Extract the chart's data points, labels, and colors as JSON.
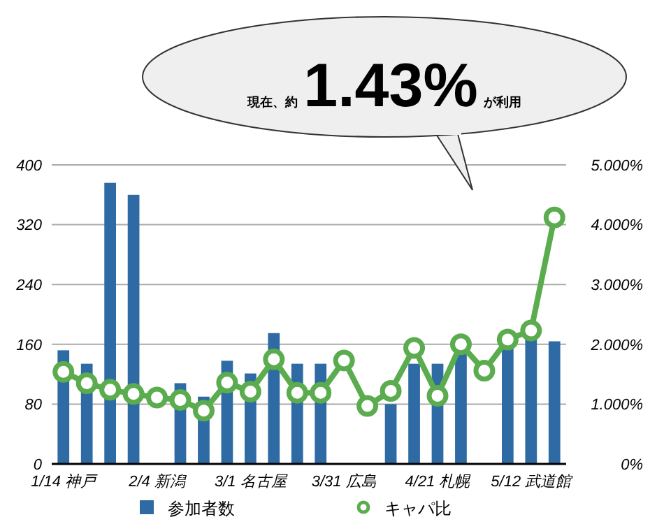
{
  "chart_data": {
    "type": "bar",
    "categories": [
      "1/14 神戸",
      null,
      null,
      null,
      "2/4 新潟",
      null,
      null,
      null,
      "3/1 名古屋",
      null,
      null,
      null,
      "3/31 広島",
      null,
      null,
      null,
      "4/21 札幌",
      null,
      null,
      null,
      "5/12 武道館",
      null
    ],
    "series": [
      {
        "name": "参加者数",
        "color": "#2e6aa3",
        "values": [
          152,
          134,
          376,
          360,
          null,
          108,
          90,
          138,
          121,
          175,
          134,
          134,
          null,
          null,
          80,
          134,
          134,
          150,
          null,
          159,
          168,
          164
        ]
      },
      {
        "name": "キャパ比",
        "type": "line",
        "axis": "y2",
        "color": "#5aac4e",
        "marker": "circle",
        "values": [
          1.54,
          1.35,
          1.24,
          1.17,
          1.11,
          1.07,
          0.89,
          1.36,
          1.21,
          1.75,
          1.19,
          1.19,
          1.73,
          0.97,
          1.22,
          1.94,
          1.14,
          2.0,
          1.56,
          2.08,
          2.23,
          4.12
        ]
      }
    ],
    "ylim": [
      0,
      400
    ],
    "yticks": [
      0,
      80,
      160,
      240,
      320,
      400
    ],
    "y2lim": [
      0,
      5
    ],
    "y2ticks": [
      {
        "value": 0,
        "label": "0%"
      },
      {
        "value": 1,
        "label": "1.000%"
      },
      {
        "value": 2,
        "label": "2.000%"
      },
      {
        "value": 3,
        "label": "3.000%"
      },
      {
        "value": 4,
        "label": "4.000%"
      },
      {
        "value": 5,
        "label": "5.000%"
      }
    ],
    "grid": "y",
    "legend": "bottom",
    "annotations": [
      "現在、約",
      "1.43%",
      "が利用"
    ]
  }
}
